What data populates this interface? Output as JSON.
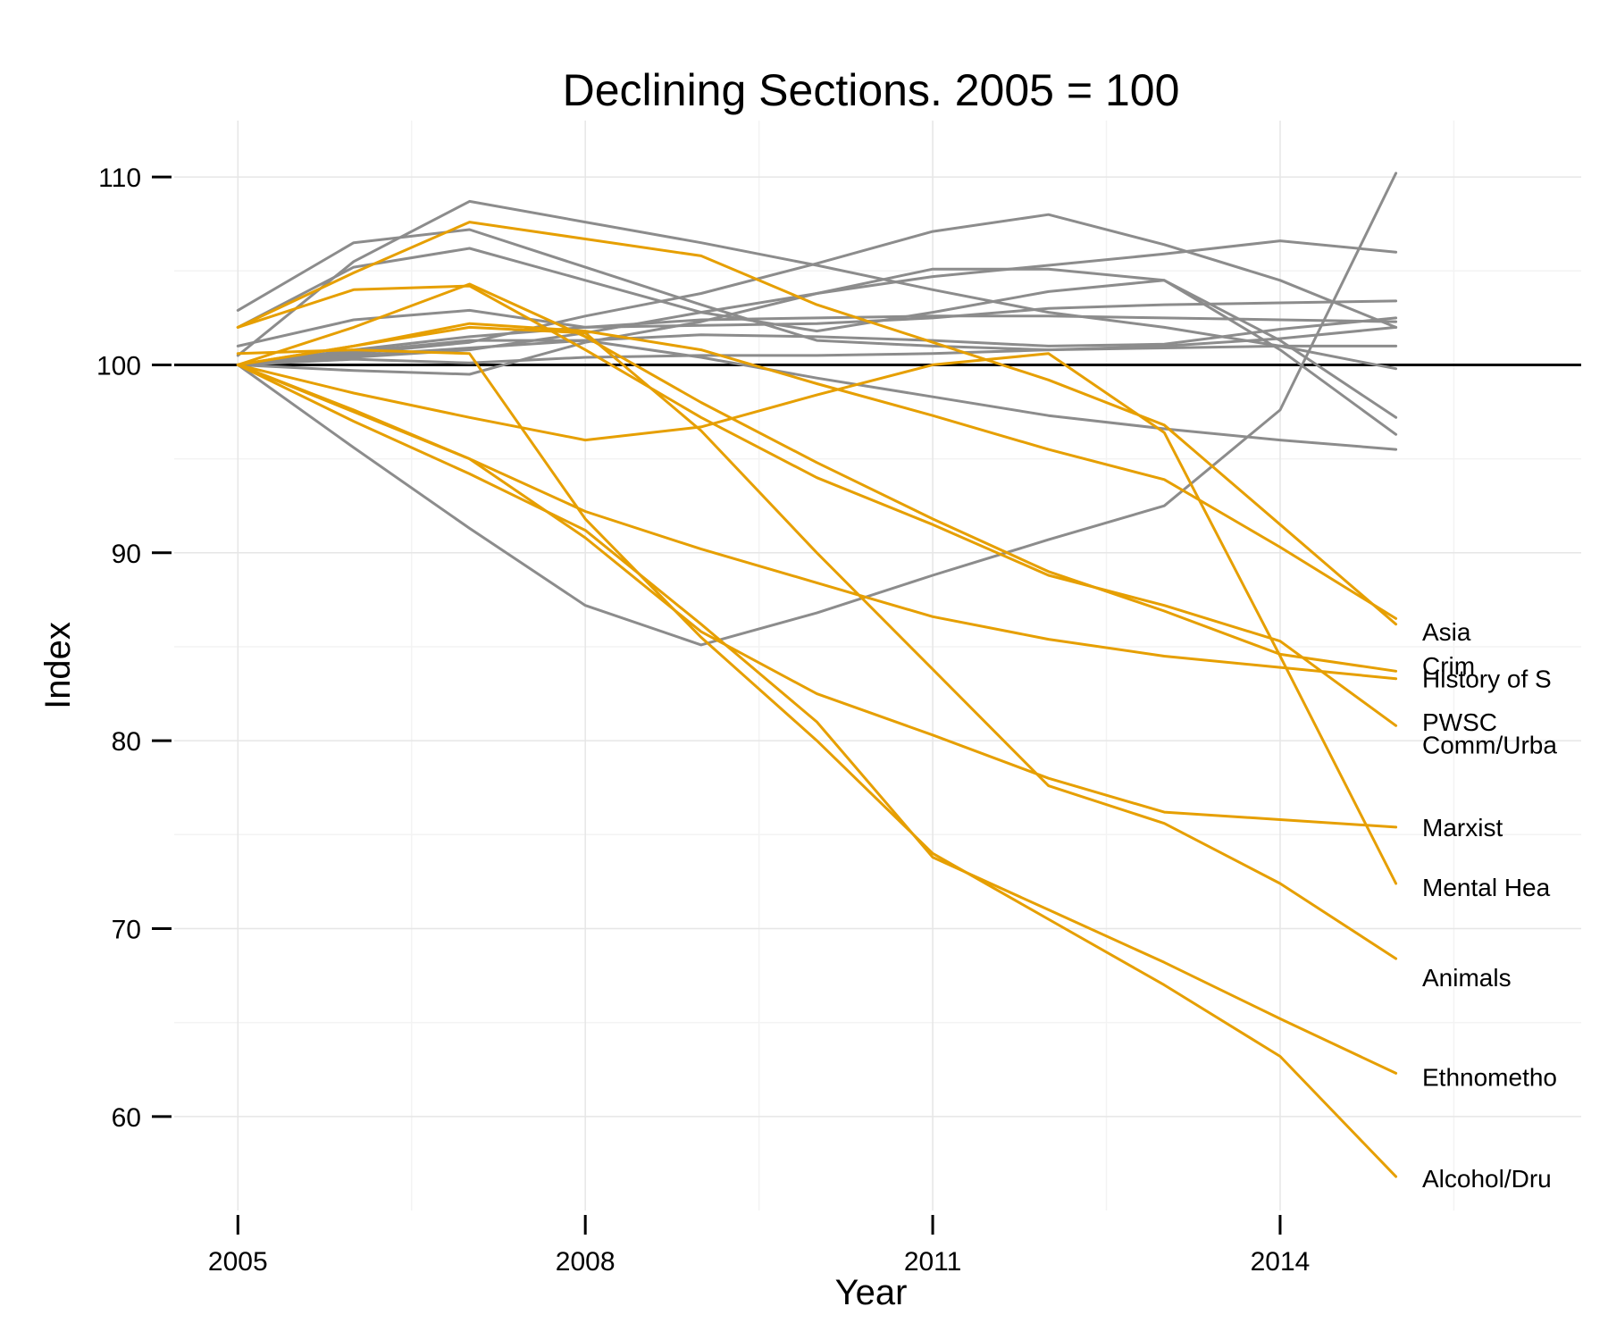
{
  "chart_data": {
    "type": "line",
    "title": "Declining Sections. 2005 = 100",
    "xlabel": "Year",
    "ylabel": "Index",
    "xlim": [
      2004.45,
      2016.6
    ],
    "ylim": [
      55,
      113
    ],
    "xticks": [
      2005,
      2008,
      2011,
      2014
    ],
    "yticks": [
      60,
      70,
      80,
      90,
      100,
      110
    ],
    "reference_line": 100,
    "grid": true,
    "legend": "none",
    "colors": {
      "declining": "#E69F00",
      "other": "#8c8c8c",
      "reference": "#000000"
    },
    "x": [
      2005,
      2006,
      2007,
      2008,
      2009,
      2010,
      2011,
      2012,
      2013,
      2014,
      2015
    ],
    "series": [
      {
        "name": "Asia",
        "group": "declining",
        "values": [
          100,
          101,
          102.2,
          101.8,
          100.8,
          99,
          97.3,
          95.5,
          93.9,
          90.3,
          86.5
        ]
      },
      {
        "name": "Crim",
        "group": "declining",
        "values": [
          100,
          102,
          104.3,
          101.5,
          98,
          94.8,
          91.8,
          89,
          86.9,
          84.6,
          83.7
        ]
      },
      {
        "name": "History of S",
        "group": "declining",
        "values": [
          100,
          97.5,
          95,
          92.2,
          90.2,
          88.4,
          86.6,
          85.4,
          84.5,
          83.9,
          83.3
        ]
      },
      {
        "name": "PWSC",
        "group": "declining",
        "values": [
          102,
          104,
          104.2,
          100.8,
          97.2,
          94,
          91.5,
          88.8,
          87.2,
          85.3,
          80.8
        ]
      },
      {
        "name": "Comm/Urba",
        "group": "declining",
        "values": [
          100.6,
          100.8,
          100.6,
          91.8,
          85.5,
          80,
          74,
          70.5,
          67,
          63.2,
          56.8
        ]
      },
      {
        "name": "Marxist",
        "group": "declining",
        "values": [
          100,
          97.6,
          95,
          90.8,
          85.8,
          82.5,
          80.3,
          78,
          76.2,
          75.8,
          75.4
        ]
      },
      {
        "name": "Mental Hea",
        "group": "declining",
        "values": [
          100,
          98.5,
          97.2,
          96,
          96.7,
          98.4,
          100,
          100.6,
          96.4,
          84.5,
          72.4
        ]
      },
      {
        "name": "Animals",
        "group": "declining",
        "values": [
          102,
          104.9,
          107.6,
          106.7,
          105.8,
          103.2,
          101.2,
          99.2,
          96.8,
          91.5,
          86.2
        ]
      },
      {
        "name": "Ethnometho",
        "group": "declining",
        "values": [
          100,
          97,
          94.2,
          91.2,
          86.2,
          81,
          73.8,
          71,
          68.2,
          65.2,
          62.3
        ]
      },
      {
        "name": "Alcohol/Dru",
        "group": "declining",
        "values": [
          100,
          101,
          102,
          101.7,
          96.5,
          90,
          83.8,
          77.6,
          75.6,
          72.4,
          68.4
        ]
      },
      {
        "name": "",
        "group": "other",
        "values": [
          100,
          99.7,
          99.5,
          101.2,
          102.3,
          103.8,
          105.1,
          105.1,
          104.5,
          100.8,
          96.3
        ]
      },
      {
        "name": "",
        "group": "other",
        "values": [
          100,
          95.6,
          91.3,
          87.2,
          85.1,
          86.8,
          88.8,
          90.7,
          92.5,
          97.6,
          110.2
        ]
      },
      {
        "name": "",
        "group": "other",
        "values": [
          102.9,
          106.5,
          107.2,
          105.2,
          103.2,
          101.3,
          101,
          100.8,
          101,
          101.4,
          102
        ]
      },
      {
        "name": "",
        "group": "other",
        "values": [
          101,
          102.4,
          102.9,
          102,
          102.1,
          102.2,
          102.5,
          103,
          103.2,
          103.3,
          103.4
        ]
      },
      {
        "name": "",
        "group": "other",
        "values": [
          100.5,
          105.5,
          108.7,
          107.6,
          106.5,
          105.3,
          104,
          102.8,
          102,
          101,
          99.8
        ]
      },
      {
        "name": "",
        "group": "other",
        "values": [
          102,
          105.2,
          106.2,
          104.5,
          102.8,
          101.8,
          102.8,
          103.9,
          104.5,
          101.3,
          97.2
        ]
      },
      {
        "name": "",
        "group": "other",
        "values": [
          100,
          100.6,
          101.2,
          102.6,
          103.8,
          105.4,
          107.1,
          108,
          106.4,
          104.5,
          102
        ]
      },
      {
        "name": "",
        "group": "other",
        "values": [
          100,
          100.8,
          101.5,
          102,
          102.4,
          102.5,
          102.6,
          102.6,
          102.5,
          102.4,
          102.3
        ]
      },
      {
        "name": "",
        "group": "other",
        "values": [
          100,
          100.3,
          100.1,
          100.4,
          100.5,
          100.5,
          100.6,
          100.8,
          100.9,
          101,
          101
        ]
      },
      {
        "name": "",
        "group": "other",
        "values": [
          100,
          100.7,
          101.3,
          101.3,
          100.4,
          99.3,
          98.3,
          97.3,
          96.6,
          96,
          95.5
        ]
      },
      {
        "name": "",
        "group": "other",
        "values": [
          100,
          100.4,
          100.8,
          101.7,
          102.8,
          103.8,
          104.7,
          105.3,
          105.9,
          106.6,
          106
        ]
      },
      {
        "name": "",
        "group": "other",
        "values": [
          100,
          100.5,
          100.9,
          101.3,
          101.6,
          101.5,
          101.3,
          101,
          101.1,
          101.9,
          102.5
        ]
      }
    ],
    "end_labels": [
      {
        "text": "Asia",
        "y": 85.8
      },
      {
        "text": "Crim",
        "y": 84.0
      },
      {
        "text": "History of S",
        "y": 83.3
      },
      {
        "text": "PWSC",
        "y": 81.0
      },
      {
        "text": "Comm/Urba",
        "y": 79.8
      },
      {
        "text": "Marxist",
        "y": 75.4
      },
      {
        "text": "Mental Hea",
        "y": 72.2
      },
      {
        "text": "Animals",
        "y": 67.4
      },
      {
        "text": "Ethnometho",
        "y": 62.1
      },
      {
        "text": "Alcohol/Dru",
        "y": 56.7
      }
    ]
  }
}
